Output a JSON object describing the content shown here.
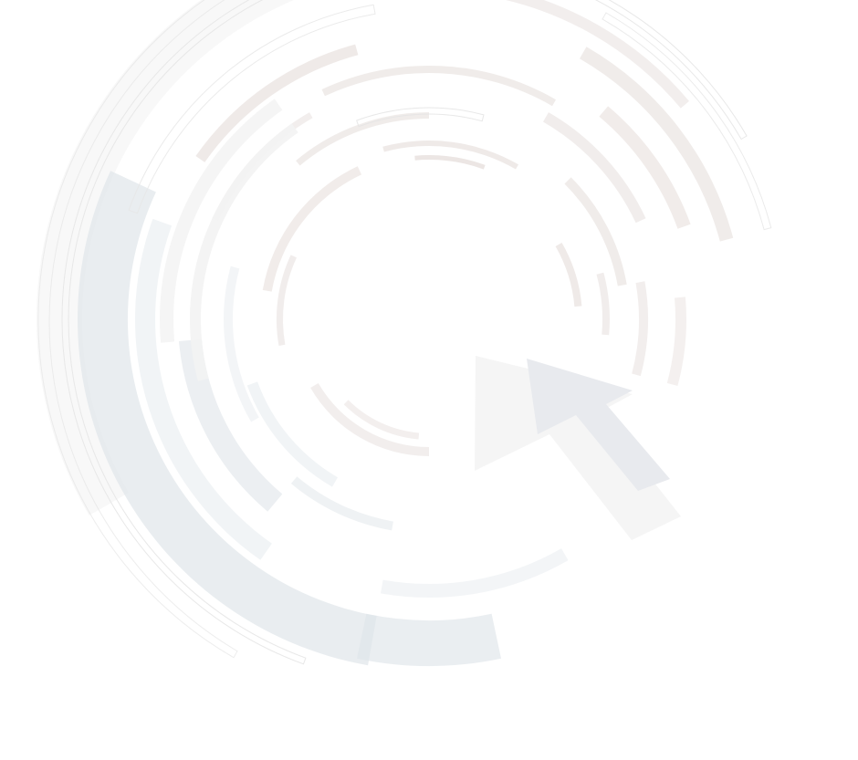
{
  "scene": {
    "background": "#ffffff",
    "palette": {
      "warm_grey": "#e4dcd9",
      "warm_grey_light": "#efeae8",
      "cool_grey": "#dfe5ea",
      "cool_grey_light": "#eef1f4",
      "neutral_light": "#f3f3f3",
      "outline": "#e6e6e6"
    },
    "icons": [
      "concentric-arcs-graphic",
      "mouse-pointer-arrow-icon"
    ]
  }
}
